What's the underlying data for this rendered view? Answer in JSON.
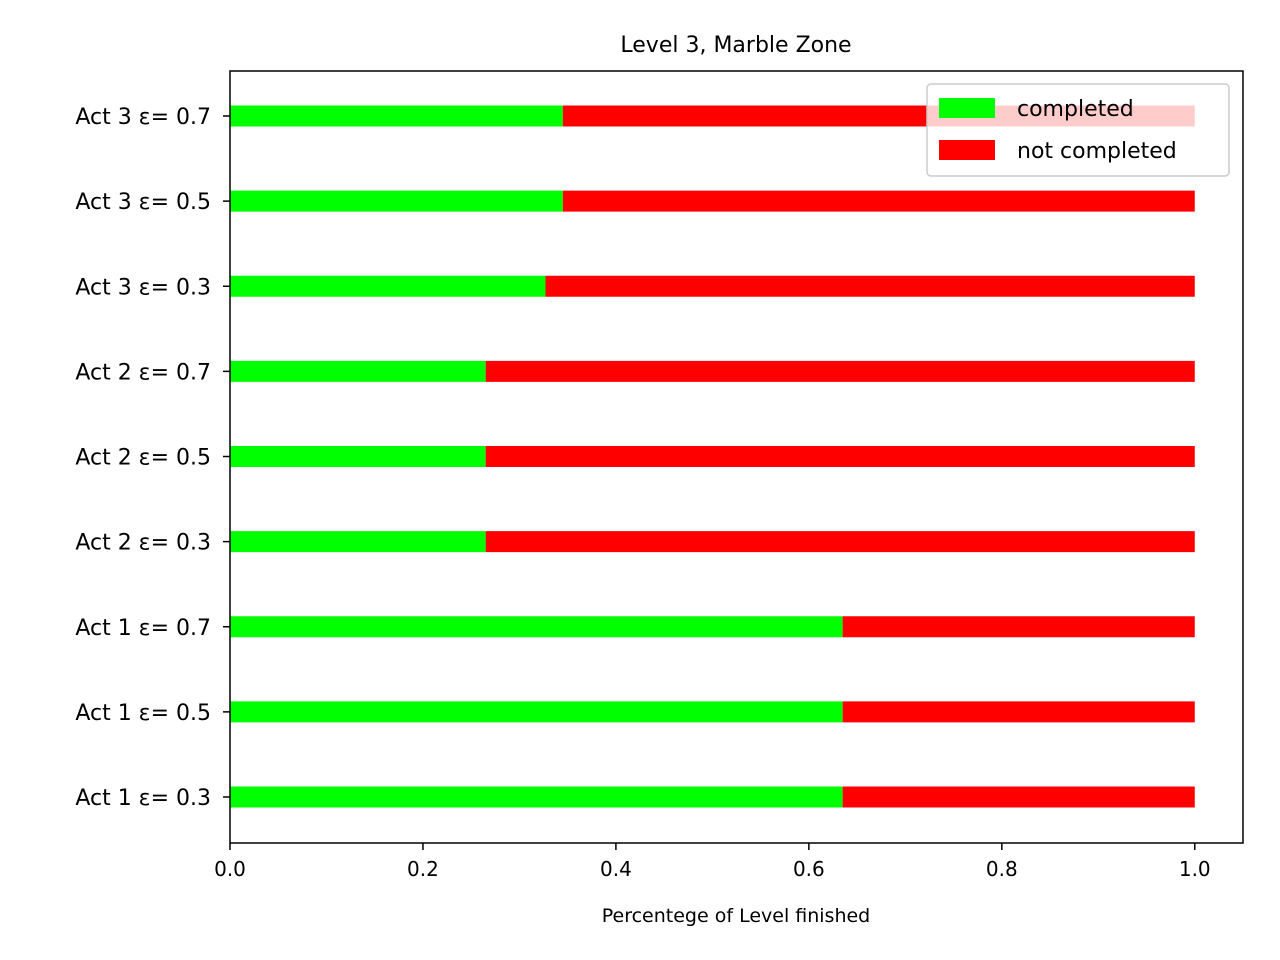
{
  "chart_data": {
    "type": "bar",
    "orientation": "horizontal",
    "stacked": true,
    "title": "Level 3, Marble Zone",
    "xlabel": "Percentege of Level finished",
    "ylabel": "",
    "xlim": [
      0,
      1.05
    ],
    "xticks": [
      "0.0",
      "0.2",
      "0.4",
      "0.6",
      "0.8",
      "1.0"
    ],
    "categories": [
      "Act 1 ε= 0.3",
      "Act 1 ε= 0.5",
      "Act 1 ε= 0.7",
      "Act 2 ε= 0.3",
      "Act 2 ε= 0.5",
      "Act 2 ε= 0.7",
      "Act 3 ε= 0.3",
      "Act 3 ε= 0.5",
      "Act 3 ε= 0.7"
    ],
    "series": [
      {
        "name": "completed",
        "color": "#00ff00",
        "values": [
          0.635,
          0.635,
          0.635,
          0.265,
          0.265,
          0.265,
          0.327,
          0.345,
          0.345
        ]
      },
      {
        "name": "not completed",
        "color": "#ff0000",
        "values": [
          0.365,
          0.365,
          0.365,
          0.735,
          0.735,
          0.735,
          0.673,
          0.655,
          0.655
        ]
      }
    ],
    "legend_position": "top-right",
    "grid": false
  }
}
